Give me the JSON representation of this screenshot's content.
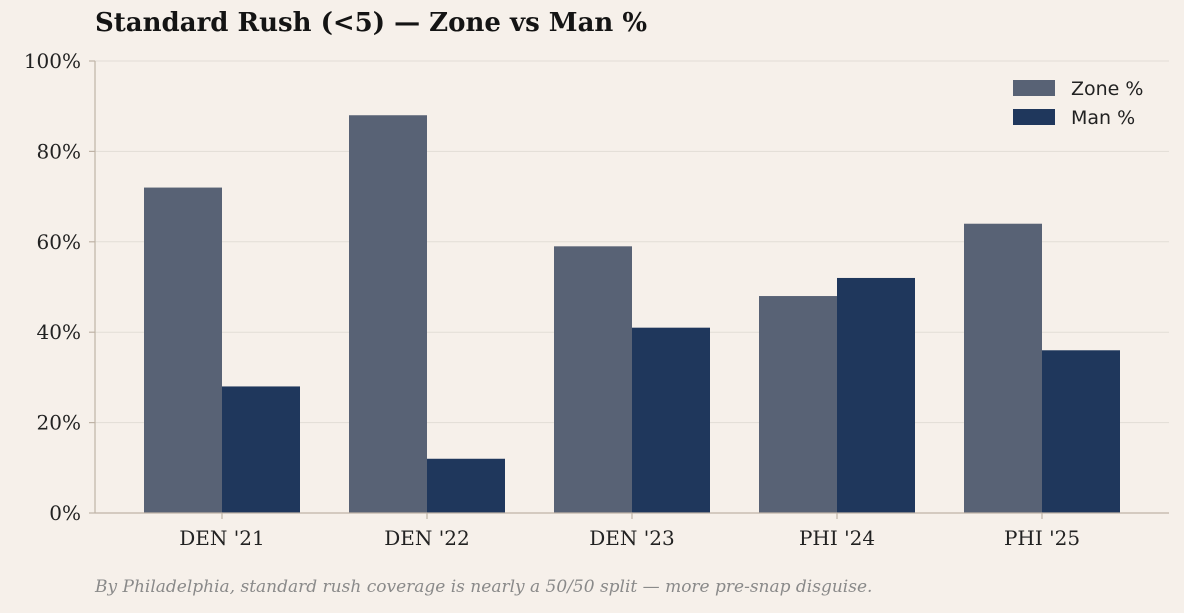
{
  "chart_data": {
    "type": "bar",
    "title": "Standard Rush (<5) — Zone vs Man %",
    "categories": [
      "DEN '21",
      "DEN '22",
      "DEN '23",
      "PHI '24",
      "PHI '25"
    ],
    "series": [
      {
        "name": "Zone %",
        "values": [
          72,
          88,
          59,
          48,
          64
        ],
        "color": "#586275"
      },
      {
        "name": "Man %",
        "values": [
          28,
          12,
          41,
          52,
          36
        ],
        "color": "#1f375c"
      }
    ],
    "ylim": [
      0,
      100
    ],
    "yticks": [
      0,
      20,
      40,
      60,
      80,
      100
    ],
    "ytick_labels": [
      "0%",
      "20%",
      "40%",
      "60%",
      "80%",
      "100%"
    ],
    "xlabel": "",
    "ylabel": "",
    "grid": true,
    "legend_position": "top-right",
    "caption": "By Philadelphia, standard rush coverage is nearly a 50/50 split — more pre-snap disguise."
  }
}
